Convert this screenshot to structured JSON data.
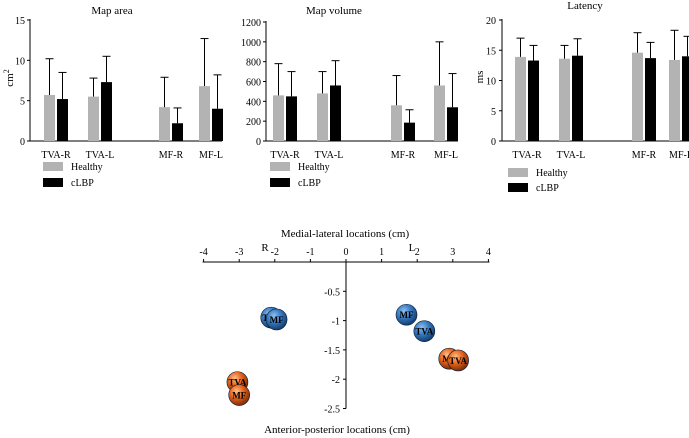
{
  "chart_data": [
    {
      "type": "bar",
      "title": "Map area",
      "ylabel": "cm²",
      "ylabel_base": "cm",
      "ylabel_exp": "2",
      "ylim": [
        0,
        15
      ],
      "yticks": [
        "0",
        "5",
        "10",
        "15"
      ],
      "categories": [
        "TVA-R",
        "TVA-L",
        "MF-R",
        "MF-L"
      ],
      "series": [
        {
          "name": "Healthy",
          "color": "#b3b3b3",
          "values": [
            5.7,
            5.5,
            4.2,
            6.8
          ],
          "errors": [
            4.5,
            2.3,
            3.7,
            5.9
          ]
        },
        {
          "name": "cLBP",
          "color": "#000000",
          "values": [
            5.2,
            7.3,
            2.2,
            4.0
          ],
          "errors": [
            3.3,
            3.2,
            1.9,
            4.2
          ]
        }
      ],
      "legend": [
        "Healthy",
        "cLBP"
      ]
    },
    {
      "type": "bar",
      "title": "Map volume",
      "ylabel": "",
      "ylim": [
        0,
        1200
      ],
      "yticks": [
        "0",
        "200",
        "400",
        "600",
        "800",
        "1000",
        "1200"
      ],
      "categories": [
        "TVA-R",
        "TVA-L",
        "MF-R",
        "MF-L"
      ],
      "series": [
        {
          "name": "Healthy",
          "color": "#b3b3b3",
          "values": [
            460,
            480,
            360,
            560
          ],
          "errors": [
            320,
            220,
            300,
            440
          ]
        },
        {
          "name": "cLBP",
          "color": "#000000",
          "values": [
            450,
            560,
            185,
            340
          ],
          "errors": [
            250,
            250,
            130,
            340
          ]
        }
      ],
      "legend": [
        "Healthy",
        "cLBP"
      ]
    },
    {
      "type": "bar",
      "title": "Latency",
      "ylabel": "ms",
      "ylim": [
        0,
        20
      ],
      "yticks": [
        "0",
        "5",
        "10",
        "15",
        "20"
      ],
      "categories": [
        "TVA-R",
        "TVA-L",
        "MF-R",
        "MF-L"
      ],
      "series": [
        {
          "name": "Healthy",
          "color": "#b3b3b3",
          "values": [
            13.9,
            13.6,
            14.6,
            13.4
          ],
          "errors": [
            3.1,
            2.2,
            3.3,
            4.9
          ]
        },
        {
          "name": "cLBP",
          "color": "#000000",
          "values": [
            13.3,
            14.1,
            13.7,
            14.0
          ],
          "errors": [
            2.5,
            2.8,
            2.6,
            3.3
          ]
        }
      ],
      "legend": [
        "Healthy",
        "cLBP"
      ]
    },
    {
      "type": "scatter",
      "title": "Medial-lateral locations (cm)",
      "xlabel": "Medial-lateral locations (cm)",
      "ylabel": "Anterior-posterior locations (cm)",
      "xlim": [
        -4,
        4
      ],
      "ylim": [
        -2.5,
        0
      ],
      "xticks": [
        "-4",
        "-3",
        "-2",
        "-1",
        "0",
        "1",
        "2",
        "3",
        "4"
      ],
      "yticks": [
        "-0.5",
        "-1",
        "-1.5",
        "-2",
        "-2.5"
      ],
      "side_labels": {
        "left": "R",
        "right": "L"
      },
      "series": [
        {
          "name": "Healthy",
          "color": "#2f6fb3",
          "points": [
            {
              "label": "TVA",
              "x": -2.1,
              "y": -0.95
            },
            {
              "label": "MF",
              "x": -1.95,
              "y": -0.98
            },
            {
              "label": "MF",
              "x": 1.7,
              "y": -0.9
            },
            {
              "label": "TVA",
              "x": 2.2,
              "y": -1.18
            }
          ]
        },
        {
          "name": "cLBP",
          "color": "#e0601c",
          "points": [
            {
              "label": "TVA",
              "x": -3.05,
              "y": -2.05
            },
            {
              "label": "MF",
              "x": -3.0,
              "y": -2.27
            },
            {
              "label": "MF",
              "x": 2.9,
              "y": -1.65
            },
            {
              "label": "TVA",
              "x": 3.15,
              "y": -1.68
            }
          ]
        }
      ]
    }
  ]
}
